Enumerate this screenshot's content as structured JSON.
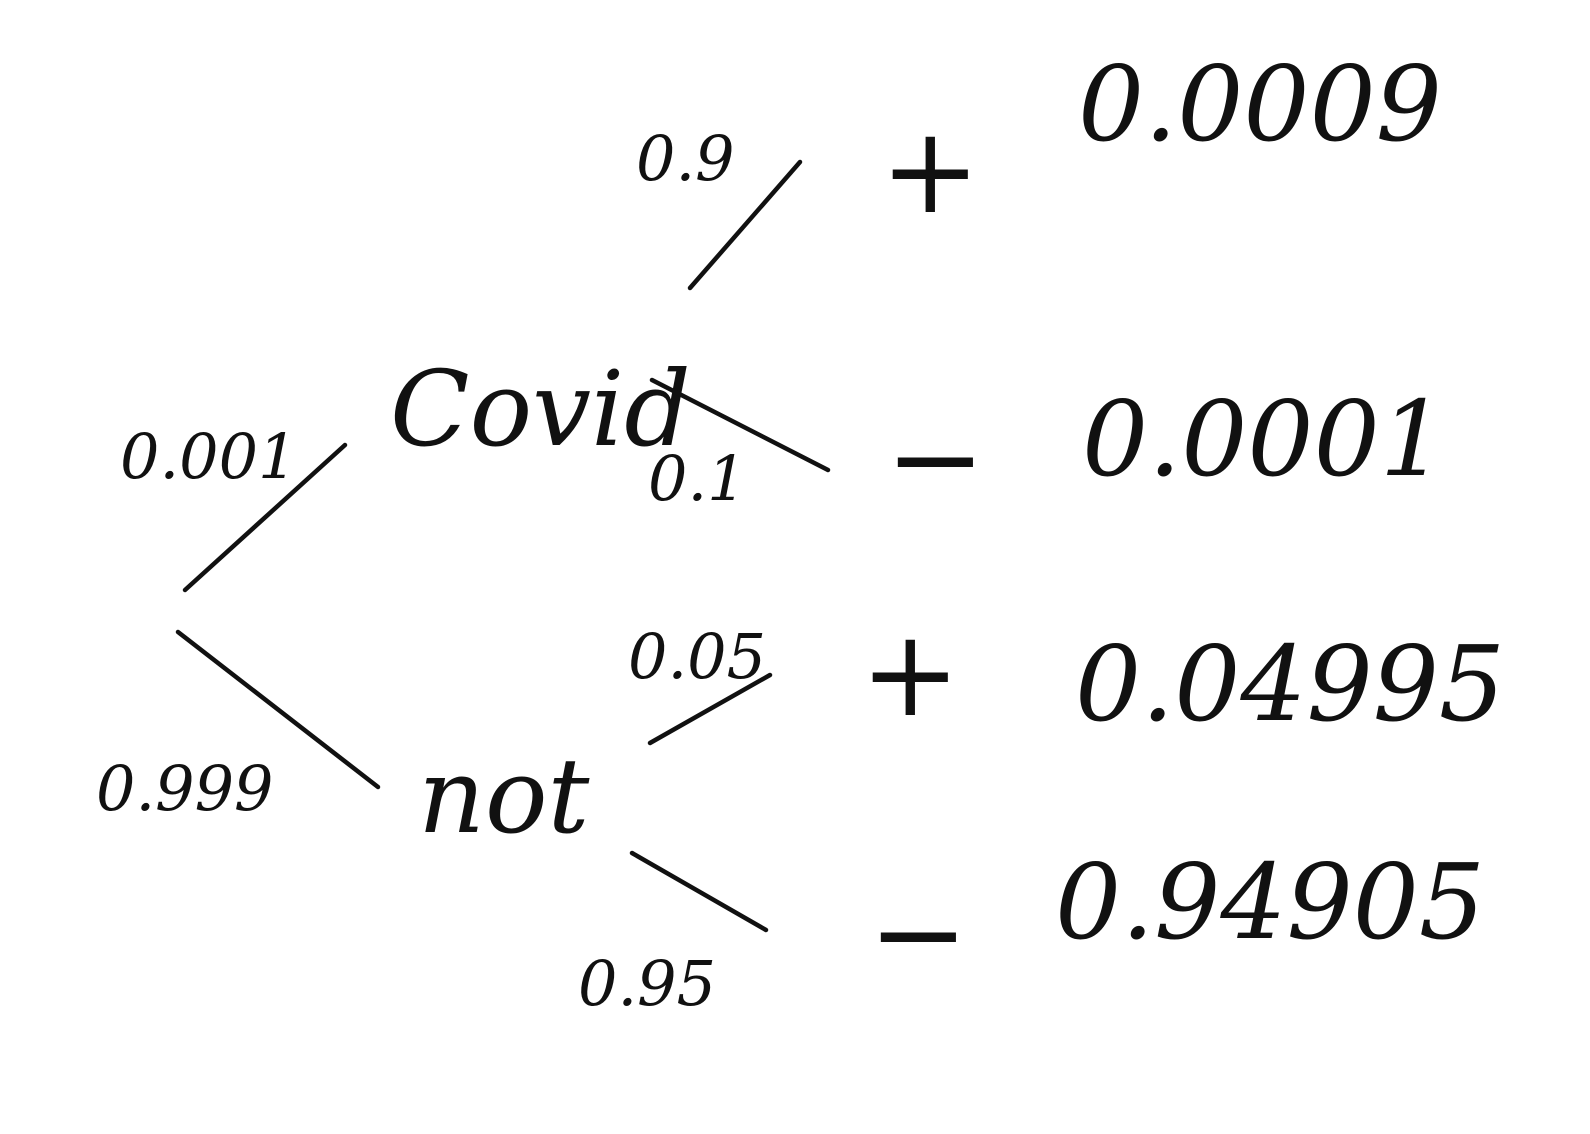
{
  "tree": {
    "root_branches": {
      "covid": {
        "prob": "0.001",
        "node_label": "Covid"
      },
      "not": {
        "prob": "0.999",
        "node_label": "not"
      }
    },
    "covid_branches": {
      "positive": {
        "prob": "0.9",
        "sign": "+",
        "result": "0.0009"
      },
      "negative": {
        "prob": "0.1",
        "sign": "−",
        "result": "0.0001"
      }
    },
    "not_branches": {
      "positive": {
        "prob": "0.05",
        "sign": "+",
        "result": "0.04995"
      },
      "negative": {
        "prob": "0.95",
        "sign": "−",
        "result": "0.94905"
      }
    }
  },
  "colors": {
    "ink": "#111111",
    "background": "#ffffff"
  }
}
